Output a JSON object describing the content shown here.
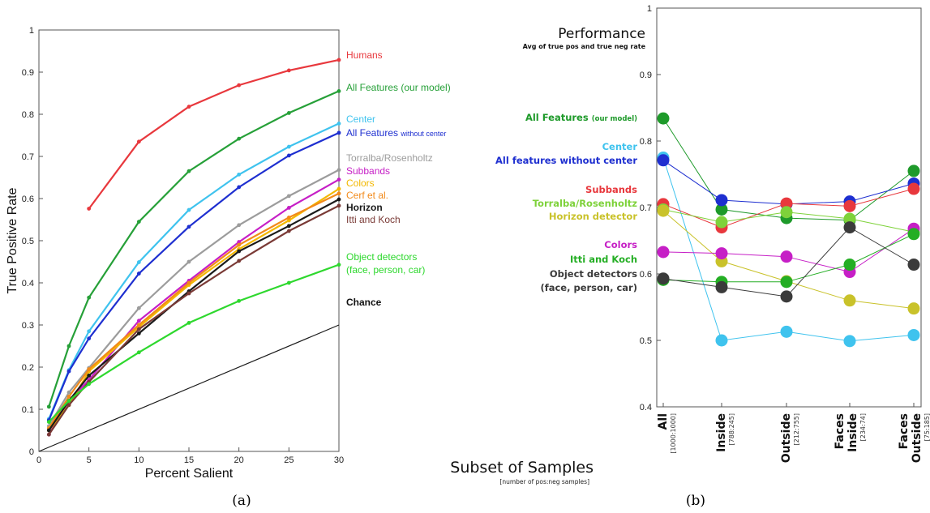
{
  "captions": {
    "a": "(a)",
    "b": "(b)"
  },
  "chart_data": [
    {
      "type": "line",
      "title": "",
      "xlabel": "Percent Salient",
      "ylabel": "True Positive Rate",
      "xlim": [
        0,
        30
      ],
      "ylim": [
        0,
        1
      ],
      "x_ticks": [
        "0",
        "5",
        "10",
        "15",
        "20",
        "25",
        "30"
      ],
      "y_ticks": [
        "0",
        "0.1",
        "0.2",
        "0.3",
        "0.4",
        "0.5",
        "0.6",
        "0.7",
        "0.8",
        "0.9",
        "1"
      ],
      "grid": false,
      "legend": "labels at right end of lines",
      "series": [
        {
          "name": "Humans",
          "color": "#e8383d",
          "x": [
            5,
            10,
            15,
            20,
            25,
            30
          ],
          "y": [
            0.576,
            0.735,
            0.818,
            0.869,
            0.904,
            0.929
          ]
        },
        {
          "name": "All Features (our model)",
          "color": "#26a038",
          "x": [
            1,
            3,
            5,
            10,
            15,
            20,
            25,
            30
          ],
          "y": [
            0.106,
            0.25,
            0.365,
            0.545,
            0.665,
            0.742,
            0.803,
            0.855
          ]
        },
        {
          "name": "Center",
          "color": "#3fc3ee",
          "x": [
            1,
            3,
            5,
            10,
            15,
            20,
            25,
            30
          ],
          "y": [
            0.077,
            0.193,
            0.285,
            0.449,
            0.573,
            0.657,
            0.723,
            0.778
          ]
        },
        {
          "name": "All Features without center",
          "color": "#1e2fd0",
          "x": [
            1,
            3,
            5,
            10,
            15,
            20,
            25,
            30
          ],
          "y": [
            0.074,
            0.19,
            0.268,
            0.422,
            0.533,
            0.627,
            0.702,
            0.756
          ]
        },
        {
          "name": "Torralba/Rosenholtz",
          "color": "#9c9c9c",
          "x": [
            1,
            3,
            5,
            10,
            15,
            20,
            25,
            30
          ],
          "y": [
            0.06,
            0.14,
            0.198,
            0.34,
            0.45,
            0.537,
            0.606,
            0.668
          ]
        },
        {
          "name": "Subbands",
          "color": "#c61fc6",
          "x": [
            1,
            3,
            5,
            10,
            15,
            20,
            25,
            30
          ],
          "y": [
            0.04,
            0.12,
            0.17,
            0.31,
            0.405,
            0.497,
            0.578,
            0.645
          ]
        },
        {
          "name": "Colors",
          "color": "#f3b800",
          "x": [
            1,
            3,
            5,
            10,
            15,
            20,
            25,
            30
          ],
          "y": [
            0.05,
            0.11,
            0.19,
            0.295,
            0.395,
            0.48,
            0.548,
            0.623
          ]
        },
        {
          "name": "Cerf et al.",
          "color": "#f28a1a",
          "x": [
            1,
            3,
            5,
            10,
            15,
            20,
            25,
            30
          ],
          "y": [
            0.055,
            0.13,
            0.195,
            0.3,
            0.4,
            0.49,
            0.555,
            0.612
          ]
        },
        {
          "name": "Horizon",
          "color": "#1a1a1a",
          "x": [
            1,
            3,
            5,
            10,
            15,
            20,
            25,
            30
          ],
          "y": [
            0.05,
            0.12,
            0.18,
            0.28,
            0.38,
            0.475,
            0.535,
            0.598
          ]
        },
        {
          "name": "Itti and Koch",
          "color": "#7a3a36",
          "x": [
            1,
            3,
            5,
            10,
            15,
            20,
            25,
            30
          ],
          "y": [
            0.04,
            0.11,
            0.165,
            0.29,
            0.375,
            0.452,
            0.523,
            0.583
          ]
        },
        {
          "name": "Object detectors (face, person, car)",
          "color": "#2ed82e",
          "x": [
            1,
            3,
            5,
            10,
            15,
            20,
            25,
            30
          ],
          "y": [
            0.07,
            0.12,
            0.16,
            0.235,
            0.305,
            0.357,
            0.4,
            0.443
          ]
        },
        {
          "name": "Chance",
          "color": "#1a1a1a",
          "x": [
            0,
            30
          ],
          "y": [
            0,
            0.3
          ],
          "markers": false
        }
      ]
    },
    {
      "type": "line",
      "title": "Performance",
      "subtitle": "Avg of true pos and true neg rate",
      "xlabel": "Subset of Samples",
      "xlabel_note": "[number of pos:neg samples]",
      "ylim": [
        0.4,
        1
      ],
      "y_ticks": [
        "0.4",
        "0.5",
        "0.6",
        "0.7",
        "0.8",
        "0.9",
        "1"
      ],
      "categories": [
        {
          "label": "All",
          "count": "[1000:1000]"
        },
        {
          "label": "Inside",
          "count": "[788:245]"
        },
        {
          "label": "Outside",
          "count": "[212:755]"
        },
        {
          "label": "Faces Inside",
          "line1": "Faces",
          "line2": "Inside",
          "count": "[234:74]"
        },
        {
          "label": "Faces Outside",
          "line1": "Faces",
          "line2": "Outside",
          "count": "[75:185]"
        }
      ],
      "grid": false,
      "legend": "left of chart",
      "series": [
        {
          "name": "All Features",
          "name_suffix": "(our model)",
          "color": "#1e9a2a",
          "values": [
            0.834,
            0.697,
            0.684,
            0.681,
            0.755
          ]
        },
        {
          "name": "Center",
          "color": "#3fc3ee",
          "values": [
            0.775,
            0.5,
            0.513,
            0.499,
            0.508
          ]
        },
        {
          "name": "All features without center",
          "color": "#1e2fd0",
          "values": [
            0.771,
            0.711,
            0.705,
            0.709,
            0.736
          ]
        },
        {
          "name": "Subbands",
          "color": "#e8383d",
          "values": [
            0.705,
            0.67,
            0.706,
            0.702,
            0.728
          ]
        },
        {
          "name": "Torralba/Rosenholtz",
          "color": "#7ed23a",
          "values": [
            0.697,
            0.678,
            0.693,
            0.683,
            0.663
          ]
        },
        {
          "name": "Horizon detector",
          "color": "#c9c22a",
          "values": [
            0.695,
            0.619,
            0.589,
            0.56,
            0.548
          ]
        },
        {
          "name": "Colors",
          "color": "#c61fc6",
          "values": [
            0.633,
            0.631,
            0.626,
            0.603,
            0.668
          ]
        },
        {
          "name": "Itti and Koch",
          "color": "#24ae24",
          "values": [
            0.591,
            0.588,
            0.588,
            0.614,
            0.66
          ]
        },
        {
          "name": "Object detectors",
          "name_line2": "(face, person, car)",
          "color": "#3b3b3b",
          "values": [
            0.593,
            0.58,
            0.566,
            0.67,
            0.614
          ]
        }
      ]
    }
  ]
}
